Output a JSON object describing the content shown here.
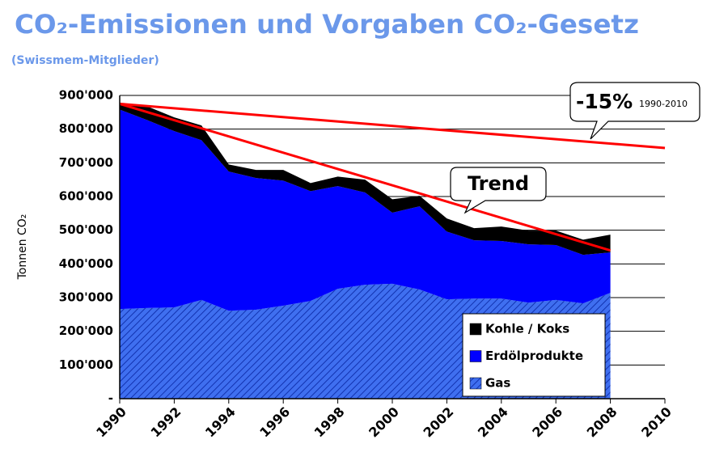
{
  "chart_data": {
    "type": "stacked-area",
    "title": "CO₂-Emissionen und Vorgaben CO₂-Gesetz",
    "subtitle": "(Swissmem-Mitglieder)",
    "y_label": "Tonnen CO₂",
    "x": [
      1990,
      1991,
      1992,
      1993,
      1994,
      1995,
      1996,
      1997,
      1998,
      1999,
      2000,
      2001,
      2002,
      2003,
      2004,
      2005,
      2006,
      2007,
      2008
    ],
    "series": [
      {
        "name": "Gas",
        "color": "#3f6ff0",
        "hatch": true,
        "values": [
          266000,
          269000,
          271000,
          293000,
          261000,
          264000,
          276000,
          290000,
          326000,
          338000,
          341000,
          324000,
          295000,
          297000,
          297000,
          285000,
          293000,
          283000,
          314000
        ]
      },
      {
        "name": "Erdölprodukte",
        "color": "#0000ff",
        "hatch": false,
        "values": [
          592000,
          558000,
          523000,
          474000,
          413000,
          391000,
          371000,
          326000,
          305000,
          274000,
          211000,
          247000,
          201000,
          173000,
          171000,
          173000,
          163000,
          144000,
          120000
        ]
      },
      {
        "name": "Kohle / Koks",
        "color": "#000000",
        "hatch": false,
        "values": [
          17000,
          41000,
          41000,
          44000,
          21000,
          24000,
          32000,
          24000,
          28000,
          38000,
          40000,
          31000,
          39000,
          36000,
          43000,
          41000,
          43000,
          45000,
          53000
        ]
      }
    ],
    "lines": [
      {
        "color": "#ff0000",
        "x": [
          1990,
          2010
        ],
        "values": [
          875000,
          744000
        ]
      },
      {
        "color": "#ff0000",
        "x": [
          1990,
          2008
        ],
        "values": [
          875000,
          440000
        ]
      }
    ],
    "annotations": [
      "-15%",
      "1990-2010",
      "Trend"
    ],
    "xlim": [
      1990,
      2010
    ],
    "xticks": [
      1990,
      1992,
      1994,
      1996,
      1998,
      2000,
      2002,
      2004,
      2006,
      2008,
      2010
    ],
    "ylim": [
      0,
      900000
    ],
    "yticks": [
      {
        "value": 0,
        "label": "-"
      },
      {
        "value": 100000,
        "label": "100'000"
      },
      {
        "value": 200000,
        "label": "200'000"
      },
      {
        "value": 300000,
        "label": "300'000"
      },
      {
        "value": 400000,
        "label": "400'000"
      },
      {
        "value": 500000,
        "label": "500'000"
      },
      {
        "value": 600000,
        "label": "600'000"
      },
      {
        "value": 700000,
        "label": "700'000"
      },
      {
        "value": 800000,
        "label": "800'000"
      },
      {
        "value": 900000,
        "label": "900'000"
      }
    ],
    "grid": true,
    "legend_position": "lower right"
  }
}
